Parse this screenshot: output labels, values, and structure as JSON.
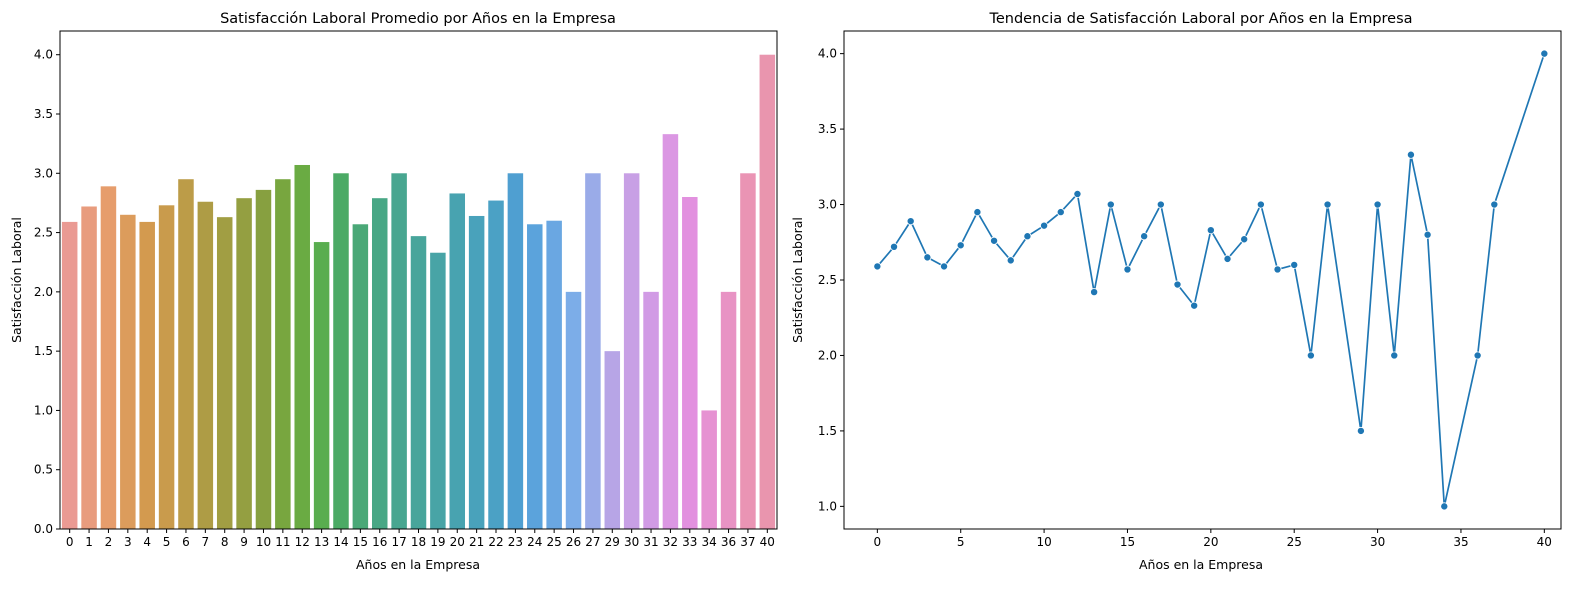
{
  "chart_data": [
    {
      "type": "bar",
      "title": "Satisfacción Laboral Promedio por Años en la Empresa",
      "xlabel": "Años en la Empresa",
      "ylabel": "Satisfacción Laboral",
      "ylim": [
        0,
        4.2
      ],
      "yticks": [
        "0.0",
        "0.5",
        "1.0",
        "1.5",
        "2.0",
        "2.5",
        "3.0",
        "3.5",
        "4.0"
      ],
      "categories": [
        "0",
        "1",
        "2",
        "3",
        "4",
        "5",
        "6",
        "7",
        "8",
        "9",
        "10",
        "11",
        "12",
        "13",
        "14",
        "15",
        "16",
        "17",
        "18",
        "19",
        "20",
        "21",
        "22",
        "23",
        "24",
        "25",
        "26",
        "27",
        "29",
        "30",
        "31",
        "32",
        "33",
        "34",
        "36",
        "37",
        "40"
      ],
      "values": [
        2.59,
        2.72,
        2.89,
        2.65,
        2.59,
        2.73,
        2.95,
        2.76,
        2.63,
        2.79,
        2.86,
        2.95,
        3.07,
        2.42,
        3.0,
        2.57,
        2.79,
        3.0,
        2.47,
        2.33,
        2.83,
        2.64,
        2.77,
        3.0,
        2.57,
        2.6,
        2.0,
        3.0,
        1.5,
        3.0,
        2.0,
        3.33,
        2.8,
        1.0,
        2.0,
        3.0,
        4.0
      ],
      "colors": [
        "#ea9a93",
        "#e89c7e",
        "#e69d6c",
        "#dc9c5c",
        "#d39a4f",
        "#c99b4c",
        "#bc9c48",
        "#ae9c45",
        "#a19e43",
        "#949f41",
        "#87a040",
        "#78a63f",
        "#6aab43",
        "#59ad4f",
        "#4baa65",
        "#4aa877",
        "#48a785",
        "#48a690",
        "#48a59b",
        "#48a4a6",
        "#48a3b0",
        "#49a2bb",
        "#4ba1c5",
        "#4f9fd1",
        "#5ba3dc",
        "#6aa7e2",
        "#7cade8",
        "#9aabe8",
        "#b7a5e6",
        "#c8a0e5",
        "#d19be5",
        "#db97e3",
        "#e291df",
        "#e692d2",
        "#e893c4",
        "#ea94b4",
        "#e995ae"
      ]
    },
    {
      "type": "line",
      "title": "Tendencia de Satisfacción Laboral por Años en la Empresa",
      "xlabel": "Años en la Empresa",
      "ylabel": "Satisfacción Laboral",
      "xlim": [
        -2,
        41
      ],
      "ylim": [
        0.85,
        4.15
      ],
      "xticks": [
        0,
        5,
        10,
        15,
        20,
        25,
        30,
        35,
        40
      ],
      "yticks": [
        "1.0",
        "1.5",
        "2.0",
        "2.5",
        "3.0",
        "3.5",
        "4.0"
      ],
      "x": [
        0,
        1,
        2,
        3,
        4,
        5,
        6,
        7,
        8,
        9,
        10,
        11,
        12,
        13,
        14,
        15,
        16,
        17,
        18,
        19,
        20,
        21,
        22,
        23,
        24,
        25,
        26,
        27,
        29,
        30,
        31,
        32,
        33,
        34,
        36,
        37,
        40
      ],
      "y": [
        2.59,
        2.72,
        2.89,
        2.65,
        2.59,
        2.73,
        2.95,
        2.76,
        2.63,
        2.79,
        2.86,
        2.95,
        3.07,
        2.42,
        3.0,
        2.57,
        2.79,
        3.0,
        2.47,
        2.33,
        2.83,
        2.64,
        2.77,
        3.0,
        2.57,
        2.6,
        2.0,
        3.0,
        1.5,
        3.0,
        2.0,
        3.33,
        2.8,
        1.0,
        2.0,
        3.0,
        4.0
      ],
      "color": "#1f77b4"
    }
  ]
}
